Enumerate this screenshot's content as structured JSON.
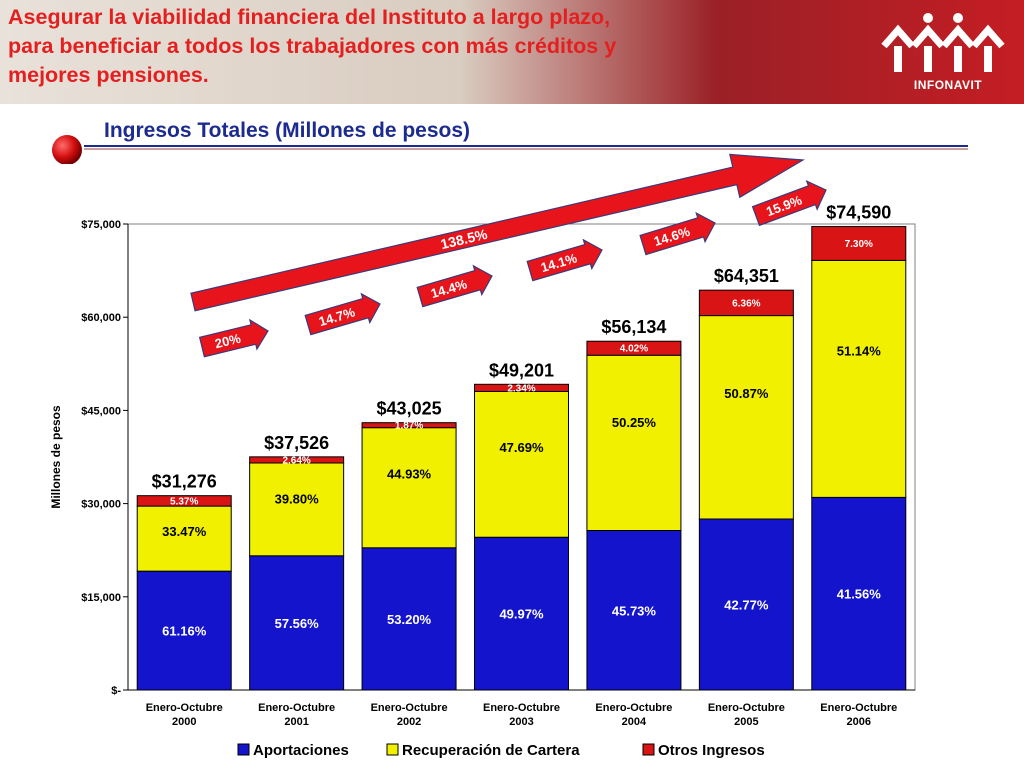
{
  "header": {
    "title": "Asegurar la viabilidad financiera del Instituto a largo plazo, para beneficiar a todos los trabajadores con más créditos y mejores pensiones.",
    "logo_text": "INFONAVIT"
  },
  "colors": {
    "aportaciones": "#1414cc",
    "recuperacion": "#f0f000",
    "otros": "#d81414",
    "arrow": "#e8141c",
    "title_blue": "#1c2b8f"
  },
  "chart_data": {
    "type": "bar",
    "stacked": true,
    "title": "Ingresos Totales (Millones de pesos)",
    "ylabel": "Millones de pesos",
    "ylim": [
      0,
      75000
    ],
    "yticks": [
      0,
      15000,
      30000,
      45000,
      60000,
      75000
    ],
    "ytick_labels": [
      "$-",
      "$15,000",
      "$30,000",
      "$45,000",
      "$60,000",
      "$75,000"
    ],
    "categories": [
      [
        "Enero-Octubre",
        "2000"
      ],
      [
        "Enero-Octubre",
        "2001"
      ],
      [
        "Enero-Octubre",
        "2002"
      ],
      [
        "Enero-Octubre",
        "2003"
      ],
      [
        "Enero-Octubre",
        "2004"
      ],
      [
        "Enero-Octubre",
        "2005"
      ],
      [
        "Enero-Octubre",
        "2006"
      ]
    ],
    "totals": [
      31276,
      37526,
      43025,
      49201,
      56134,
      64351,
      74590
    ],
    "total_labels": [
      "$31,276",
      "$37,526",
      "$43,025",
      "$49,201",
      "$56,134",
      "$64,351",
      "$74,590"
    ],
    "series": [
      {
        "name": "Aportaciones",
        "percent": [
          61.16,
          57.56,
          53.2,
          49.97,
          45.73,
          42.77,
          41.56
        ],
        "labels": [
          "61.16%",
          "57.56%",
          "53.20%",
          "49.97%",
          "45.73%",
          "42.77%",
          "41.56%"
        ]
      },
      {
        "name": "Recuperación de Cartera",
        "percent": [
          33.47,
          39.8,
          44.93,
          47.69,
          50.25,
          50.87,
          51.14
        ],
        "labels": [
          "33.47%",
          "39.80%",
          "44.93%",
          "47.69%",
          "50.25%",
          "50.87%",
          "51.14%"
        ]
      },
      {
        "name": "Otros Ingresos",
        "percent": [
          5.37,
          2.64,
          1.87,
          2.34,
          4.02,
          6.36,
          7.3
        ],
        "labels": [
          "5.37%",
          "2.64%",
          "1.87%",
          "2.34%",
          "4.02%",
          "6.36%",
          "7.30%"
        ]
      }
    ],
    "growth_labels": [
      "20%",
      "14.7%",
      "14.4%",
      "14.1%",
      "14.6%",
      "15.9%"
    ],
    "overall_growth_label": "138.5%",
    "legend_position": "bottom",
    "grid": false
  }
}
